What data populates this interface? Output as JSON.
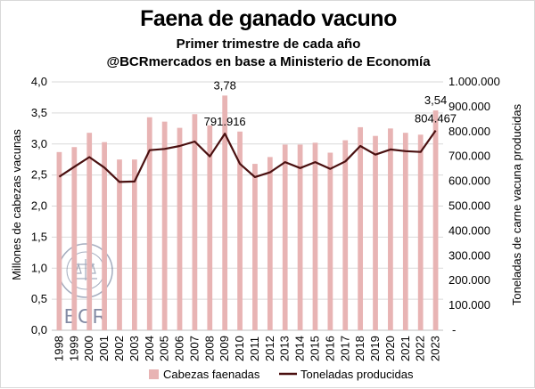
{
  "title": "Faena de ganado vacuno",
  "subtitle": "Primer trimestre de cada año",
  "source": "@BCRmercados en base a Ministerio de Economía",
  "watermark": {
    "text": "BCR",
    "seal_text": "BOLSA DE COMERCIO DE ROSARIO"
  },
  "chart_data": {
    "type": "bar+line",
    "categories": [
      "1998",
      "1999",
      "2000",
      "2001",
      "2002",
      "2003",
      "2004",
      "2005",
      "2006",
      "2007",
      "2008",
      "2009",
      "2010",
      "2011",
      "2012",
      "2013",
      "2014",
      "2015",
      "2016",
      "2017",
      "2018",
      "2019",
      "2020",
      "2021",
      "2022",
      "2023"
    ],
    "series": [
      {
        "name": "Cabezas faenadas",
        "type": "bar",
        "axis": "left",
        "color": "#e8b4b4",
        "values": [
          2.87,
          2.95,
          3.18,
          3.03,
          2.75,
          2.75,
          3.43,
          3.36,
          3.26,
          3.48,
          3.3,
          3.78,
          3.2,
          2.68,
          2.79,
          2.99,
          2.99,
          3.02,
          2.86,
          3.06,
          3.27,
          3.13,
          3.25,
          3.18,
          3.15,
          3.54
        ]
      },
      {
        "name": "Toneladas producidas",
        "type": "line",
        "axis": "right",
        "color": "#4a1010",
        "values": [
          618000,
          658000,
          697000,
          655000,
          597000,
          599000,
          725000,
          730000,
          742000,
          760000,
          700000,
          791916,
          670000,
          617000,
          636000,
          677000,
          653000,
          677000,
          650000,
          680000,
          742000,
          707000,
          728000,
          721000,
          718000,
          804467
        ]
      }
    ],
    "data_labels": [
      {
        "category": "2009",
        "series": "Cabezas faenadas",
        "text": "3,78"
      },
      {
        "category": "2009",
        "series": "Toneladas producidas",
        "text": "791.916"
      },
      {
        "category": "2023",
        "series": "Cabezas faenadas",
        "text": "3,54"
      },
      {
        "category": "2023",
        "series": "Toneladas producidas",
        "text": "804.467"
      }
    ],
    "ylabel_left": "Millones de cabezas vacunas",
    "ylabel_right": "Toneladas de carne vacuna producidas",
    "ylim_left": [
      0,
      4
    ],
    "yticks_left": [
      "0,0",
      "0,5",
      "1,0",
      "1,5",
      "2,0",
      "2,5",
      "3,0",
      "3,5",
      "4,0"
    ],
    "ylim_right": [
      0,
      1000000
    ],
    "yticks_right": [
      "-",
      "100.000",
      "200.000",
      "300.000",
      "400.000",
      "500.000",
      "600.000",
      "700.000",
      "800.000",
      "900.000",
      "1.000.000"
    ],
    "grid": true,
    "legend_position": "bottom"
  }
}
